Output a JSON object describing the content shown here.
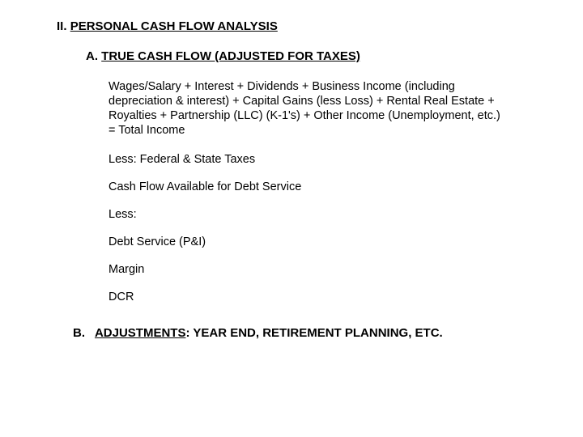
{
  "colors": {
    "background": "#ffffff",
    "text": "#000000"
  },
  "typography": {
    "family": "Arial",
    "heading_size_pt": 15,
    "body_size_pt": 14.5,
    "line_height": 1.25
  },
  "section": {
    "number": "II.",
    "title": "PERSONAL CASH FLOW ANALYSIS"
  },
  "subA": {
    "letter": "A.",
    "title": "TRUE CASH FLOW (ADJUSTED FOR TAXES)",
    "formula": "Wages/Salary + Interest + Dividends + Business Income (including depreciation & interest) + Capital Gains (less Loss) + Rental Real Estate + Royalties + Partnership (LLC) (K-1's) + Other Income (Unemployment, etc.) = Total Income",
    "lines": [
      "Less: Federal & State Taxes",
      "Cash Flow Available for Debt Service",
      "Less:",
      "Debt Service (P&I)",
      "Margin",
      "DCR"
    ]
  },
  "subB": {
    "letter": "B.",
    "title_underlined": "ADJUSTMENTS",
    "title_rest": ": YEAR END, RETIREMENT PLANNING, ETC."
  }
}
